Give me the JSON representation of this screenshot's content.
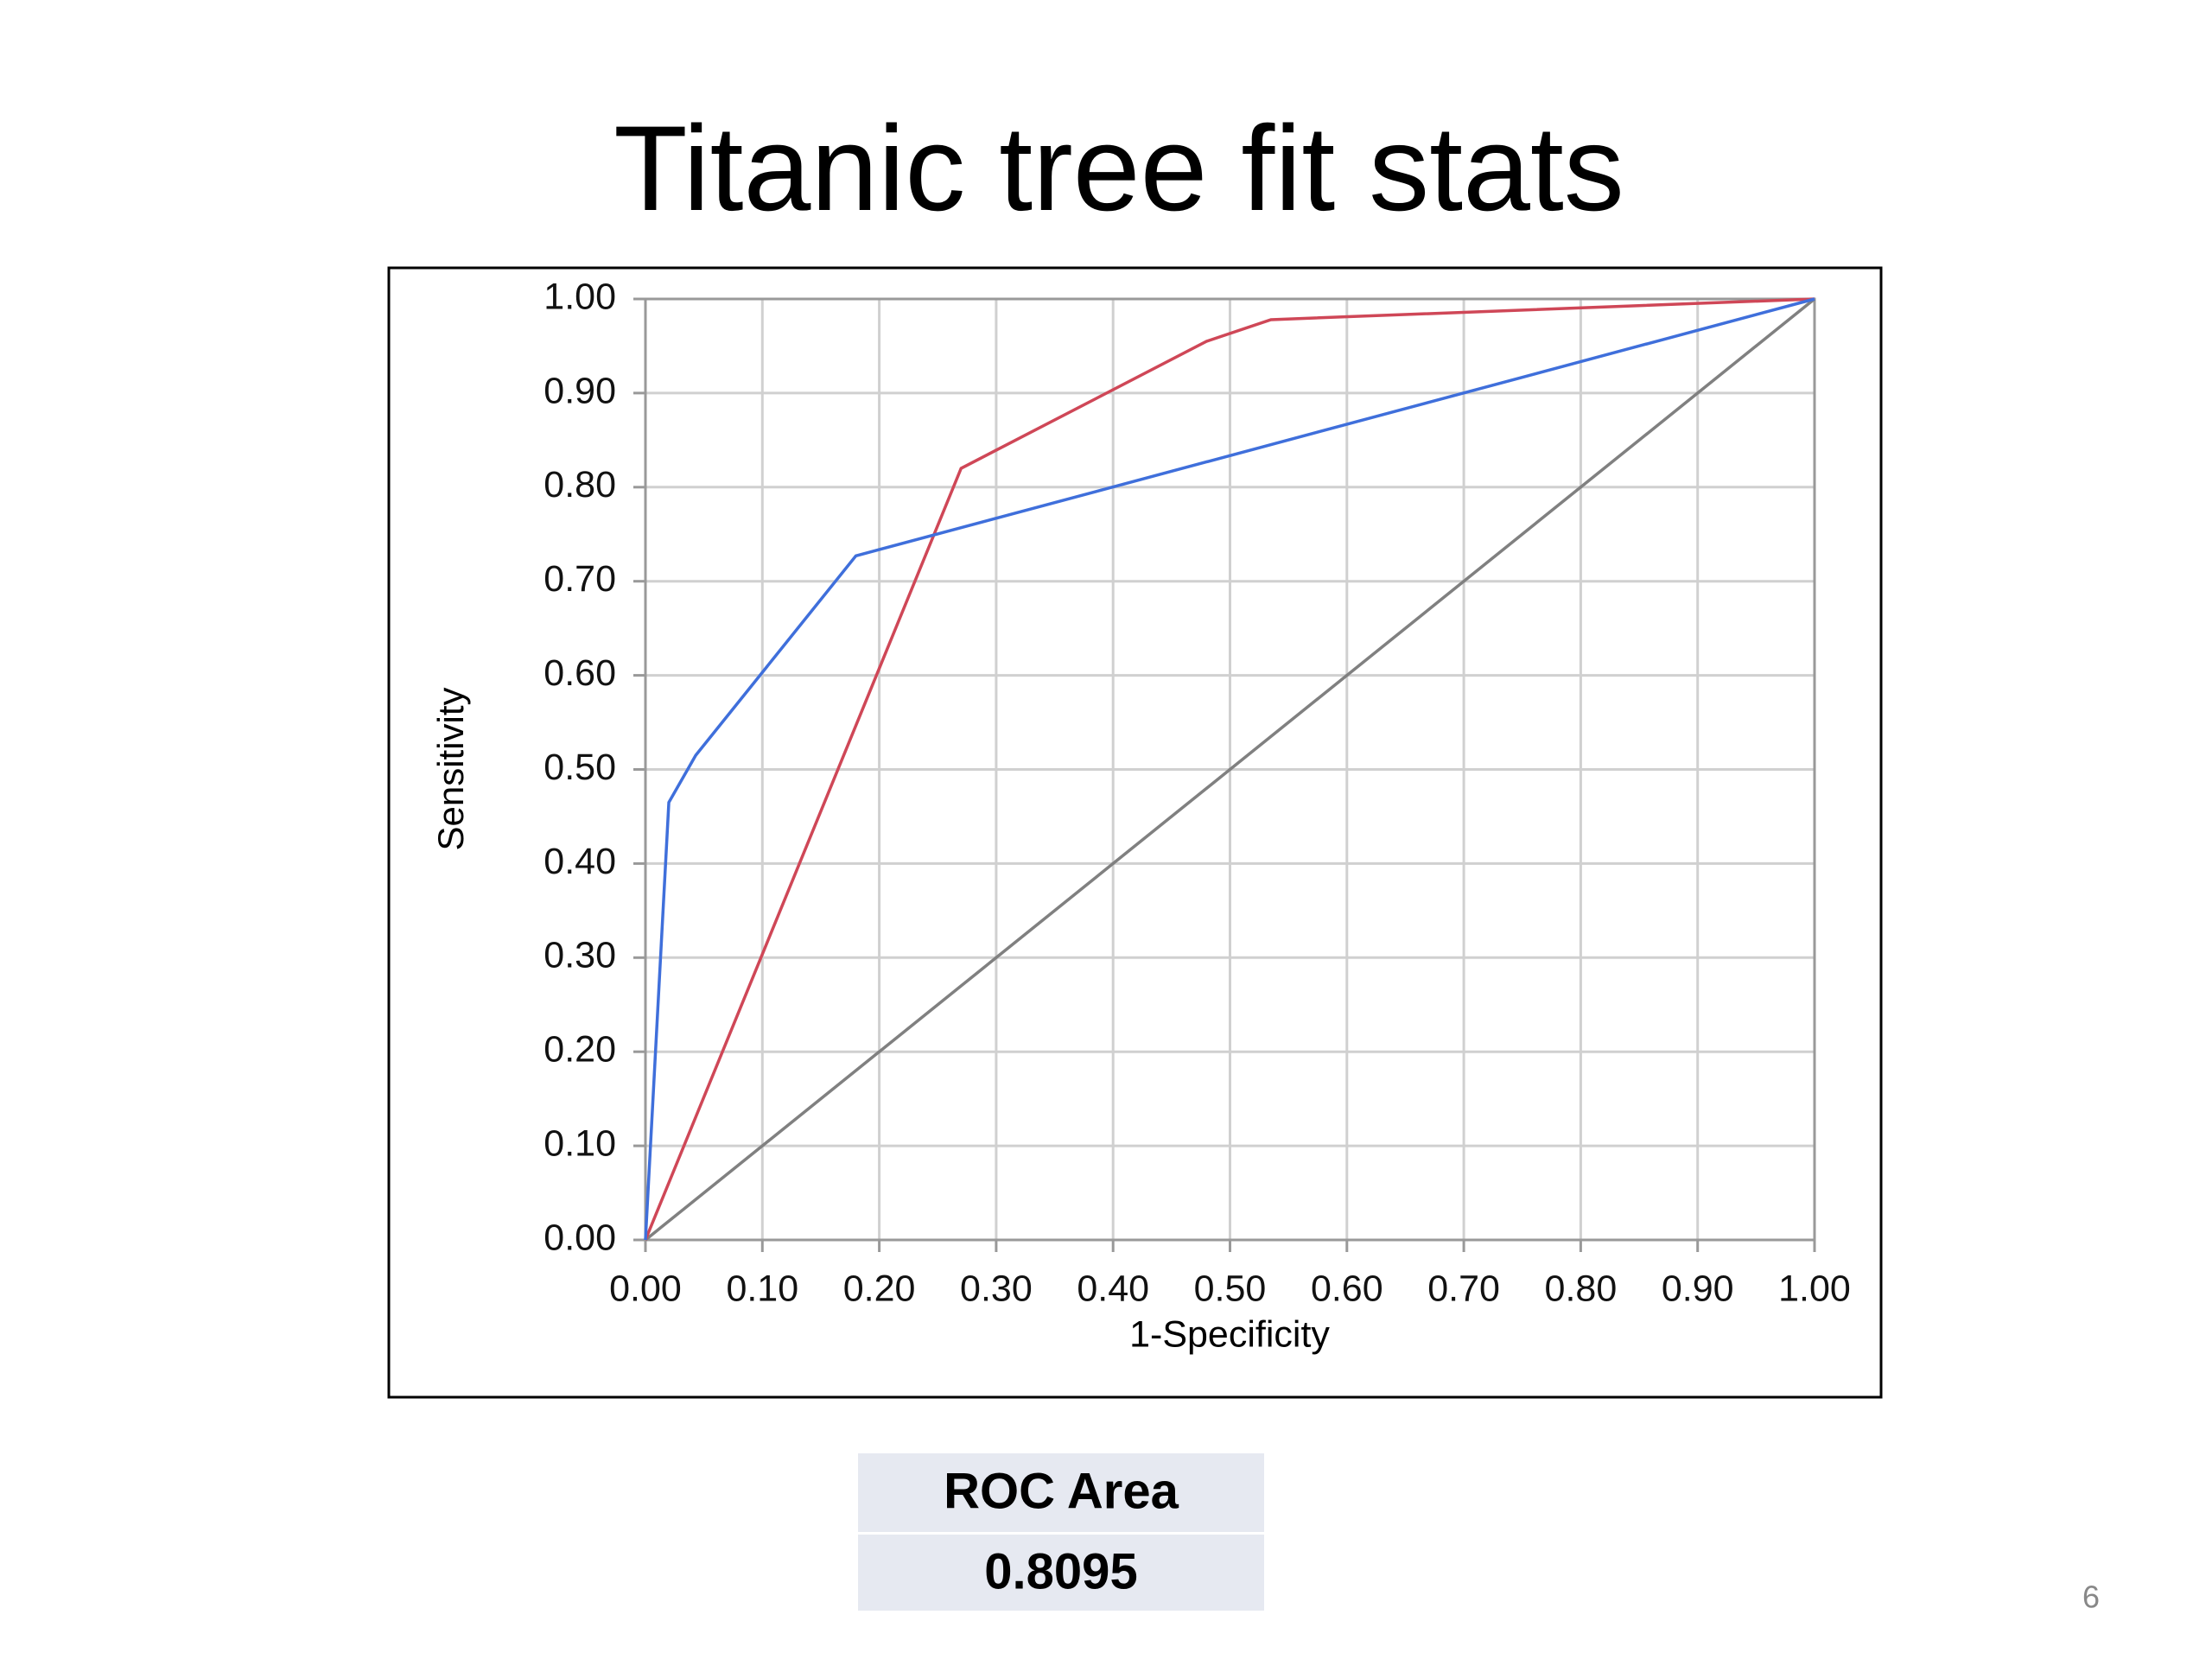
{
  "title": "Titanic tree fit stats",
  "chart_data": {
    "type": "line",
    "xlabel": "1-Specificity",
    "ylabel": "Sensitivity",
    "series": [
      {
        "color": "#808080",
        "x": [
          0,
          1
        ],
        "values": [
          0,
          1
        ]
      },
      {
        "color": "#cf4757",
        "x": [
          0,
          0.27,
          0.48,
          0.535,
          1
        ],
        "values": [
          0,
          0.82,
          0.955,
          0.978,
          1
        ]
      },
      {
        "color": "#3f6fdb",
        "x": [
          0,
          0.02,
          0.043,
          0.18,
          1
        ],
        "values": [
          0,
          0.465,
          0.515,
          0.727,
          1
        ]
      }
    ],
    "xlim": [
      0,
      1
    ],
    "ylim": [
      0,
      1
    ],
    "xticks": [
      {
        "value": 0,
        "label": "0.00"
      },
      {
        "value": 0.1,
        "label": "0.10"
      },
      {
        "value": 0.2,
        "label": "0.20"
      },
      {
        "value": 0.3,
        "label": "0.30"
      },
      {
        "value": 0.4,
        "label": "0.40"
      },
      {
        "value": 0.5,
        "label": "0.50"
      },
      {
        "value": 0.6,
        "label": "0.60"
      },
      {
        "value": 0.7,
        "label": "0.70"
      },
      {
        "value": 0.8,
        "label": "0.80"
      },
      {
        "value": 0.9,
        "label": "0.90"
      },
      {
        "value": 1,
        "label": "1.00"
      }
    ],
    "yticks": [
      {
        "value": 0,
        "label": "0.00"
      },
      {
        "value": 0.1,
        "label": "0.10"
      },
      {
        "value": 0.2,
        "label": "0.20"
      },
      {
        "value": 0.3,
        "label": "0.30"
      },
      {
        "value": 0.4,
        "label": "0.40"
      },
      {
        "value": 0.5,
        "label": "0.50"
      },
      {
        "value": 0.6,
        "label": "0.60"
      },
      {
        "value": 0.7,
        "label": "0.70"
      },
      {
        "value": 0.8,
        "label": "0.80"
      },
      {
        "value": 0.9,
        "label": "0.90"
      },
      {
        "value": 1,
        "label": "1.00"
      }
    ],
    "grid": true
  },
  "table": {
    "header": "ROC Area",
    "value": 0.8095
  },
  "page_number": 6
}
